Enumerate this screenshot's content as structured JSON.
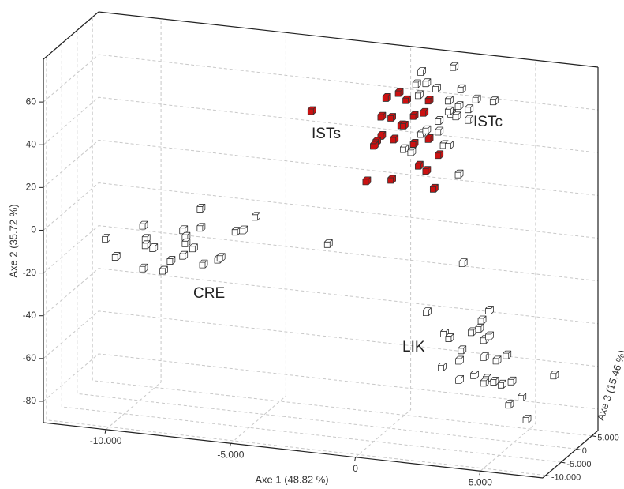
{
  "chart_data": {
    "type": "scatter3d",
    "x_label": "Axe 1 (48.82 %)",
    "y_label": "Axe 2 (35.72 %)",
    "z_label": "Axe 3 (15.46 %)",
    "xlim": [
      -12500,
      7500
    ],
    "ylim": [
      -90,
      80
    ],
    "zlim": [
      -11000,
      7000
    ],
    "xticks": [
      {
        "value": -10000,
        "label": "-10.000"
      },
      {
        "value": -5000,
        "label": "-5.000"
      },
      0,
      {
        "value": 5000,
        "label": "5.000"
      }
    ],
    "yticks": [
      60,
      40,
      20,
      0,
      -20,
      -40,
      -60,
      -80
    ],
    "zticks": [
      {
        "value": 5000,
        "label": "5.000"
      },
      0,
      {
        "value": -5000,
        "label": "-5.000"
      },
      {
        "value": -10000,
        "label": "-10.000"
      }
    ],
    "grid": true,
    "annotations": [
      "CRE",
      "ISTs",
      "ISTc",
      "LIK"
    ],
    "series": [
      {
        "color": "#ffffff",
        "x": [
          -11000,
          -10600,
          -9500,
          -9400,
          -9400,
          -9100,
          -9500,
          -8700,
          -8400,
          -7900,
          -7900,
          -7800,
          -7800,
          -7500,
          -7200,
          -7200,
          -7100,
          -6500,
          -6400,
          -5800,
          -5500,
          -5000,
          -2100,
          3300,
          900,
          2200,
          700,
          1100,
          800,
          1500,
          2500,
          3100,
          3800,
          2000,
          2400,
          2800,
          2100,
          2300,
          2800,
          1600,
          900,
          1100,
          1600,
          1800,
          2000,
          200,
          500,
          2400,
          2000,
          2100,
          2800,
          3000,
          3500,
          2700,
          3400,
          3900,
          4200,
          4300,
          4600,
          4400,
          4600,
          4400,
          4900,
          5300,
          4000,
          4500,
          4800,
          5100,
          5500,
          7200,
          5900,
          5400,
          6100,
          3400,
          4400
        ],
        "y": [
          -12,
          -20,
          -4,
          -10,
          -13,
          -14,
          -24,
          -24,
          -19,
          -16,
          -4,
          -7,
          -10,
          -12,
          7,
          -2,
          -19,
          -16,
          -15,
          -2,
          -1,
          6,
          -3,
          -5,
          74,
          78,
          68,
          69,
          63,
          67,
          68,
          64,
          64,
          62,
          60,
          59,
          56,
          55,
          54,
          52,
          45,
          47,
          47,
          41,
          41,
          37,
          36,
          28,
          57,
          -27,
          -36,
          -38,
          -43,
          -52,
          -48,
          -34,
          -32,
          -28,
          -23,
          -37,
          -35,
          -45,
          -46,
          -43,
          -54,
          -55,
          -56,
          -57,
          -55,
          -50,
          -62,
          -66,
          -72,
          -57,
          -57
        ],
        "z": [
          -3000,
          -3000,
          -3000,
          -3000,
          -3000,
          -3000,
          -3000,
          -3000,
          -3000,
          -3000,
          -3000,
          -3000,
          -3000,
          -3000,
          -3000,
          -3000,
          -3000,
          -3000,
          -3000,
          -3000,
          -3000,
          -3000,
          -3000,
          -3000,
          3000,
          3000,
          3000,
          3000,
          3000,
          3000,
          3000,
          3000,
          3000,
          3000,
          3000,
          3000,
          3000,
          3000,
          3000,
          3000,
          3000,
          3000,
          3000,
          3000,
          3000,
          3000,
          3000,
          3000,
          3000,
          -5000,
          -5000,
          -5000,
          -5000,
          -5000,
          -5000,
          -5000,
          -5000,
          -5000,
          -5000,
          -5000,
          -5000,
          -5000,
          -5000,
          -5000,
          -5000,
          -5000,
          -5000,
          -5000,
          -5000,
          -5000,
          -5000,
          -5000,
          -5000,
          -5000,
          -5000
        ]
      },
      {
        "color": "#cc1111",
        "x": [
          -3500,
          -500,
          0,
          300,
          -700,
          -300,
          100,
          200,
          600,
          1000,
          1200,
          -700,
          -900,
          -1000,
          -200,
          600,
          1200,
          1600,
          800,
          1100,
          -300,
          -1300,
          1400
        ],
        "y": [
          50,
          60,
          63,
          60,
          51,
          51,
          48,
          48,
          53,
          55,
          61,
          42,
          39,
          37,
          41,
          40,
          43,
          36,
          30,
          28,
          22,
          20,
          20
        ],
        "z": [
          3000,
          3000,
          3000,
          3000,
          3000,
          3000,
          3000,
          3000,
          3000,
          3000,
          3000,
          3000,
          3000,
          3000,
          3000,
          3000,
          3000,
          3000,
          3000,
          3000,
          3000,
          3000,
          3000
        ]
      }
    ]
  }
}
